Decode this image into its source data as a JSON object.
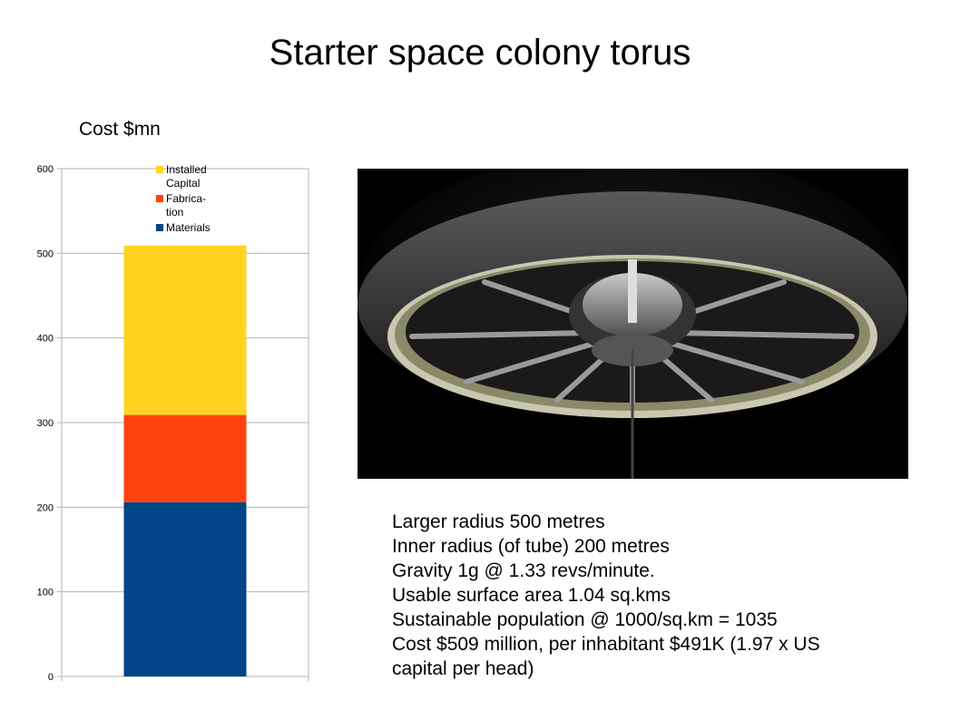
{
  "slide": {
    "title": "Starter space colony torus"
  },
  "chart_data": {
    "type": "bar",
    "stacked": true,
    "title": "Cost $mn",
    "categories": [
      ""
    ],
    "series": [
      {
        "name": "Materials",
        "values": [
          206
        ],
        "color": "#004586"
      },
      {
        "name": "Fabrica-\ntion",
        "values": [
          103
        ],
        "color": "#ff420e"
      },
      {
        "name": "Installed\nCapital",
        "values": [
          200
        ],
        "color": "#ffd320"
      }
    ],
    "legend_order": [
      "Installed\nCapital",
      "Fabrica-\ntion",
      "Materials"
    ],
    "legend_position": "top-right",
    "ylim": [
      0,
      600
    ],
    "yticks": [
      0,
      100,
      200,
      300,
      400,
      500,
      600
    ],
    "grid": true,
    "xlabel": "",
    "ylabel": ""
  },
  "image": {
    "icon": "space-torus-illustration"
  },
  "info": {
    "lines": [
      "Larger radius 500 metres",
      "Inner radius (of tube) 200 metres",
      "Gravity 1g @ 1.33 revs/minute.",
      "Usable surface area 1.04 sq.kms",
      "Sustainable population @ 1000/sq.km = 1035",
      "Cost $509 million, per inhabitant $491K (1.97 x US",
      "capital per head)"
    ]
  }
}
